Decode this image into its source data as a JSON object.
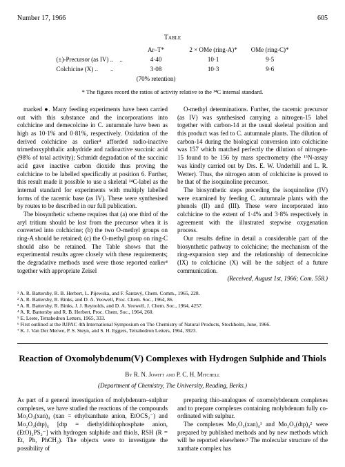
{
  "header": {
    "issue": "Number 17, 1966",
    "page": "605"
  },
  "table": {
    "title": "Table",
    "columns": [
      "",
      "Ar–T*",
      "2 × OMe (ring-A)*",
      "OMe (ring-C)*"
    ],
    "rows": [
      [
        "(±)-Precursor (as IV) ..",
        "..",
        "4·40",
        "10·1",
        "9·5"
      ],
      [
        "Colchicine (X) ..",
        "..",
        "3·08",
        "10·3",
        "9·6"
      ]
    ],
    "retention": "(70% retention)",
    "footnote": "* The figures record the ratios of activity relative to the ¹⁴C internal standard."
  },
  "body": {
    "p1": "marked ●. Many feeding experiments have been carried out with this substance and the incorporations into colchicine and demecolcine in C. autumnale have been as high as 10·1% and 0·81%, respectively. Oxidation of the derived colchicine as earlier⁴ afforded radio-inactive trimethoxyphthalic anhydride and radioactive succinic acid (98% of total activity); Schmidt degradation of the succinic acid gave inactive carbon dioxide thus proving the colchicine to be labelled specifically at position 6. Further, this result made it possible to use a skeletal ¹⁴C-label as the internal standard for experiments with multiply labelled forms of the racemic base (as IV). These were synthesised by routes to be described in our full publication.",
    "p2": "The biosynthetic scheme requires that (a) one third of the aryl tritium should be lost from the precursor when it is converted into colchicine; (b) the two O-methyl groups on ring-A should be retained; (c) the O-methyl group on ring-C should also be retained. The Table shows that the experimental results agree closely with these requirements; the degradative methods used were those reported earlier⁴ together with appropriate Zeisel",
    "p3": "O-methyl determinations. Further, the racemic precursor (as IV) was synthesised carrying a nitrogen-15 label together with carbon-14 at the usual skeletal position and this product was fed to C. autumnale plants. The dilution of carbon-14 during the biological conversion into colchicine was 157 which matched perfectly the dilution of nitrogen-15 found to be 156 by mass spectrometry (the ¹⁵N-assay was kindly carried out by Drs. E. W. Underhill and L. R. Wetter). Thus, the nitrogen atom of colchicine is proved to be that of the isoquinoline precursor.",
    "p4": "The biosynthetic steps preceding the isoquinoline (IV) were examined by feeding C. autumnale plants with the phenols (II) and (III). These were incorporated into colchicine to the extent of 1·4% and 3·8% respectively in agreement with the illustrated stepwise oxygenation process.",
    "p5": "Our results define in detail a considerable part of the biosynthetic pathway to colchicine; the mechanism of the ring-expansion step and the relationship of demecolcine (IX) to colchicine (X) will be the subject of a future communication.",
    "received": "(Received, August 1st, 1966; Com. 558.)"
  },
  "refs": {
    "r1": "¹ A. R. Battersby, R. B. Herbert, L. Pijewska, and F. Šantavý, Chem. Comm., 1965, 228.",
    "r2": "² A. R. Battersby, R. Binks, and D. A. Yeowell, Proc. Chem. Soc., 1964, 86.",
    "r3": "³ A. R. Battersby, R. Binks, J. J. Reynolds, and D. A. Yeowell, J. Chem. Soc., 1964, 4257.",
    "r4": "⁴ A. R. Battersby and R. B. Herbert, Proc. Chem. Soc., 1964, 260.",
    "r5": "⁵ E. Leete, Tetrahedron Letters, 1965, 333.",
    "r6": "⁶ First outlined at the IUPAC 4th International Symposium on The Chemistry of Natural Products, Stockholm, June, 1966.",
    "r7": "⁷ K. J. Van Der Merwe, P. S. Steyn, and S. H. Eggers, Tetrahedron Letters, 1964, 3923."
  },
  "article2": {
    "title": "Reaction of Oxomolybdenum(V) Complexes with Hydrogen Sulphide and Thiols",
    "authors": "By R. N. Jowitt and P. C. H. Mitchell",
    "affiliation": "(Department of Chemistry, The University, Reading, Berks.)",
    "p1": "As part of a general investigation of molybdenum–sulphur complexes, we have studied the reactions of the compounds Mo₂O₃(xan)₄ (xan = ethylxanthate anion, EtOCS₂⁻) and Mo₂O₃(dtp)₄ [dtp = diethyldithiophosphate anion, (EtO)₂PS₂⁻] with hydrogen sulphide and thiols, RSH (R = Et, Ph, PhCH₂). The objects were to investigate the possibility of",
    "p2": "preparing thio-analogues of oxomolybdenum complexes and to prepare complexes containing molybdenum fully co-ordinated with sulphur.",
    "p3": "The complexes Mo₂O₃(xan)₄¹ and Mo₂O₃(dtp)₄² were prepared by published methods and by new methods which will be reported elsewhere.³ The molecular structure of the xanthate complex has"
  }
}
